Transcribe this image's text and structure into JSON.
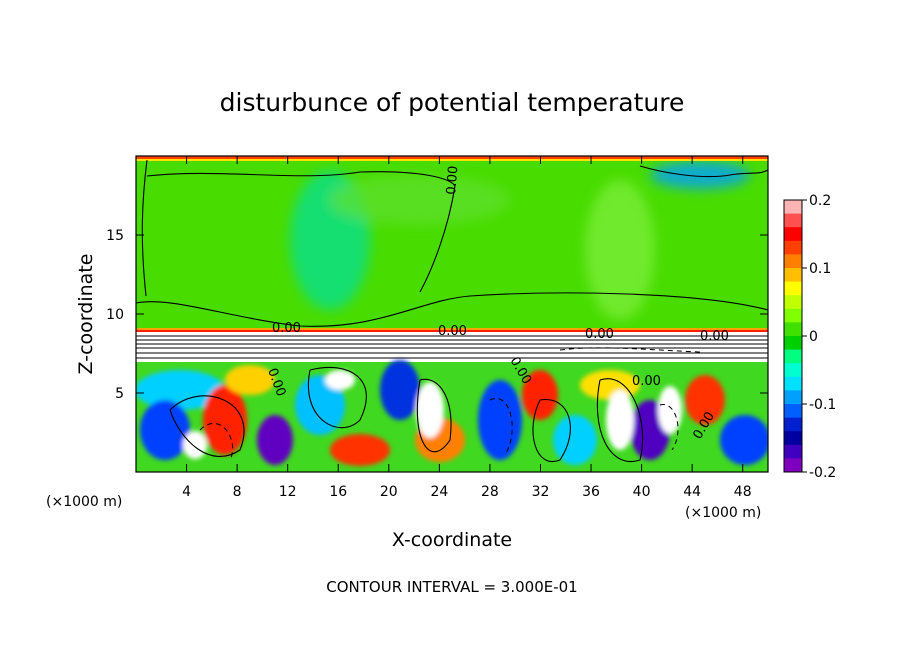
{
  "chart_data": {
    "type": "heatmap",
    "title": "disturbunce of potential temperature",
    "xlabel": "X-coordinate",
    "ylabel": "Z-coordinate",
    "x_unit_left": "(×1000 m)",
    "x_unit_right": "(×1000 m)",
    "xlim": [
      0,
      50
    ],
    "ylim": [
      0,
      20
    ],
    "xticks": [
      4,
      8,
      12,
      16,
      20,
      24,
      28,
      32,
      36,
      40,
      44,
      48
    ],
    "yticks": [
      5,
      10,
      15
    ],
    "colorbar": {
      "range": [
        -0.2,
        0.2
      ],
      "ticks": [
        "0.2",
        "0.1",
        "0",
        "-0.1",
        "-0.2"
      ],
      "colors": [
        "#ffb4b4",
        "#ff5050",
        "#ff0000",
        "#ff4000",
        "#ff8000",
        "#ffbf00",
        "#ffff00",
        "#c0ff00",
        "#80ff00",
        "#40e000",
        "#00d000",
        "#00ff80",
        "#00ffd0",
        "#00e0ff",
        "#00a0ff",
        "#0060ff",
        "#0020d0",
        "#0000a0",
        "#4000c0",
        "#8000c0"
      ]
    },
    "contour_labels": [
      "0.00",
      "0.00",
      "0.00",
      "0.00",
      "0.00",
      "0.00",
      "0.00",
      "0.00",
      "0.00"
    ],
    "contour_interval_text": "CONTOUR INTERVAL = 3.000E-01"
  }
}
